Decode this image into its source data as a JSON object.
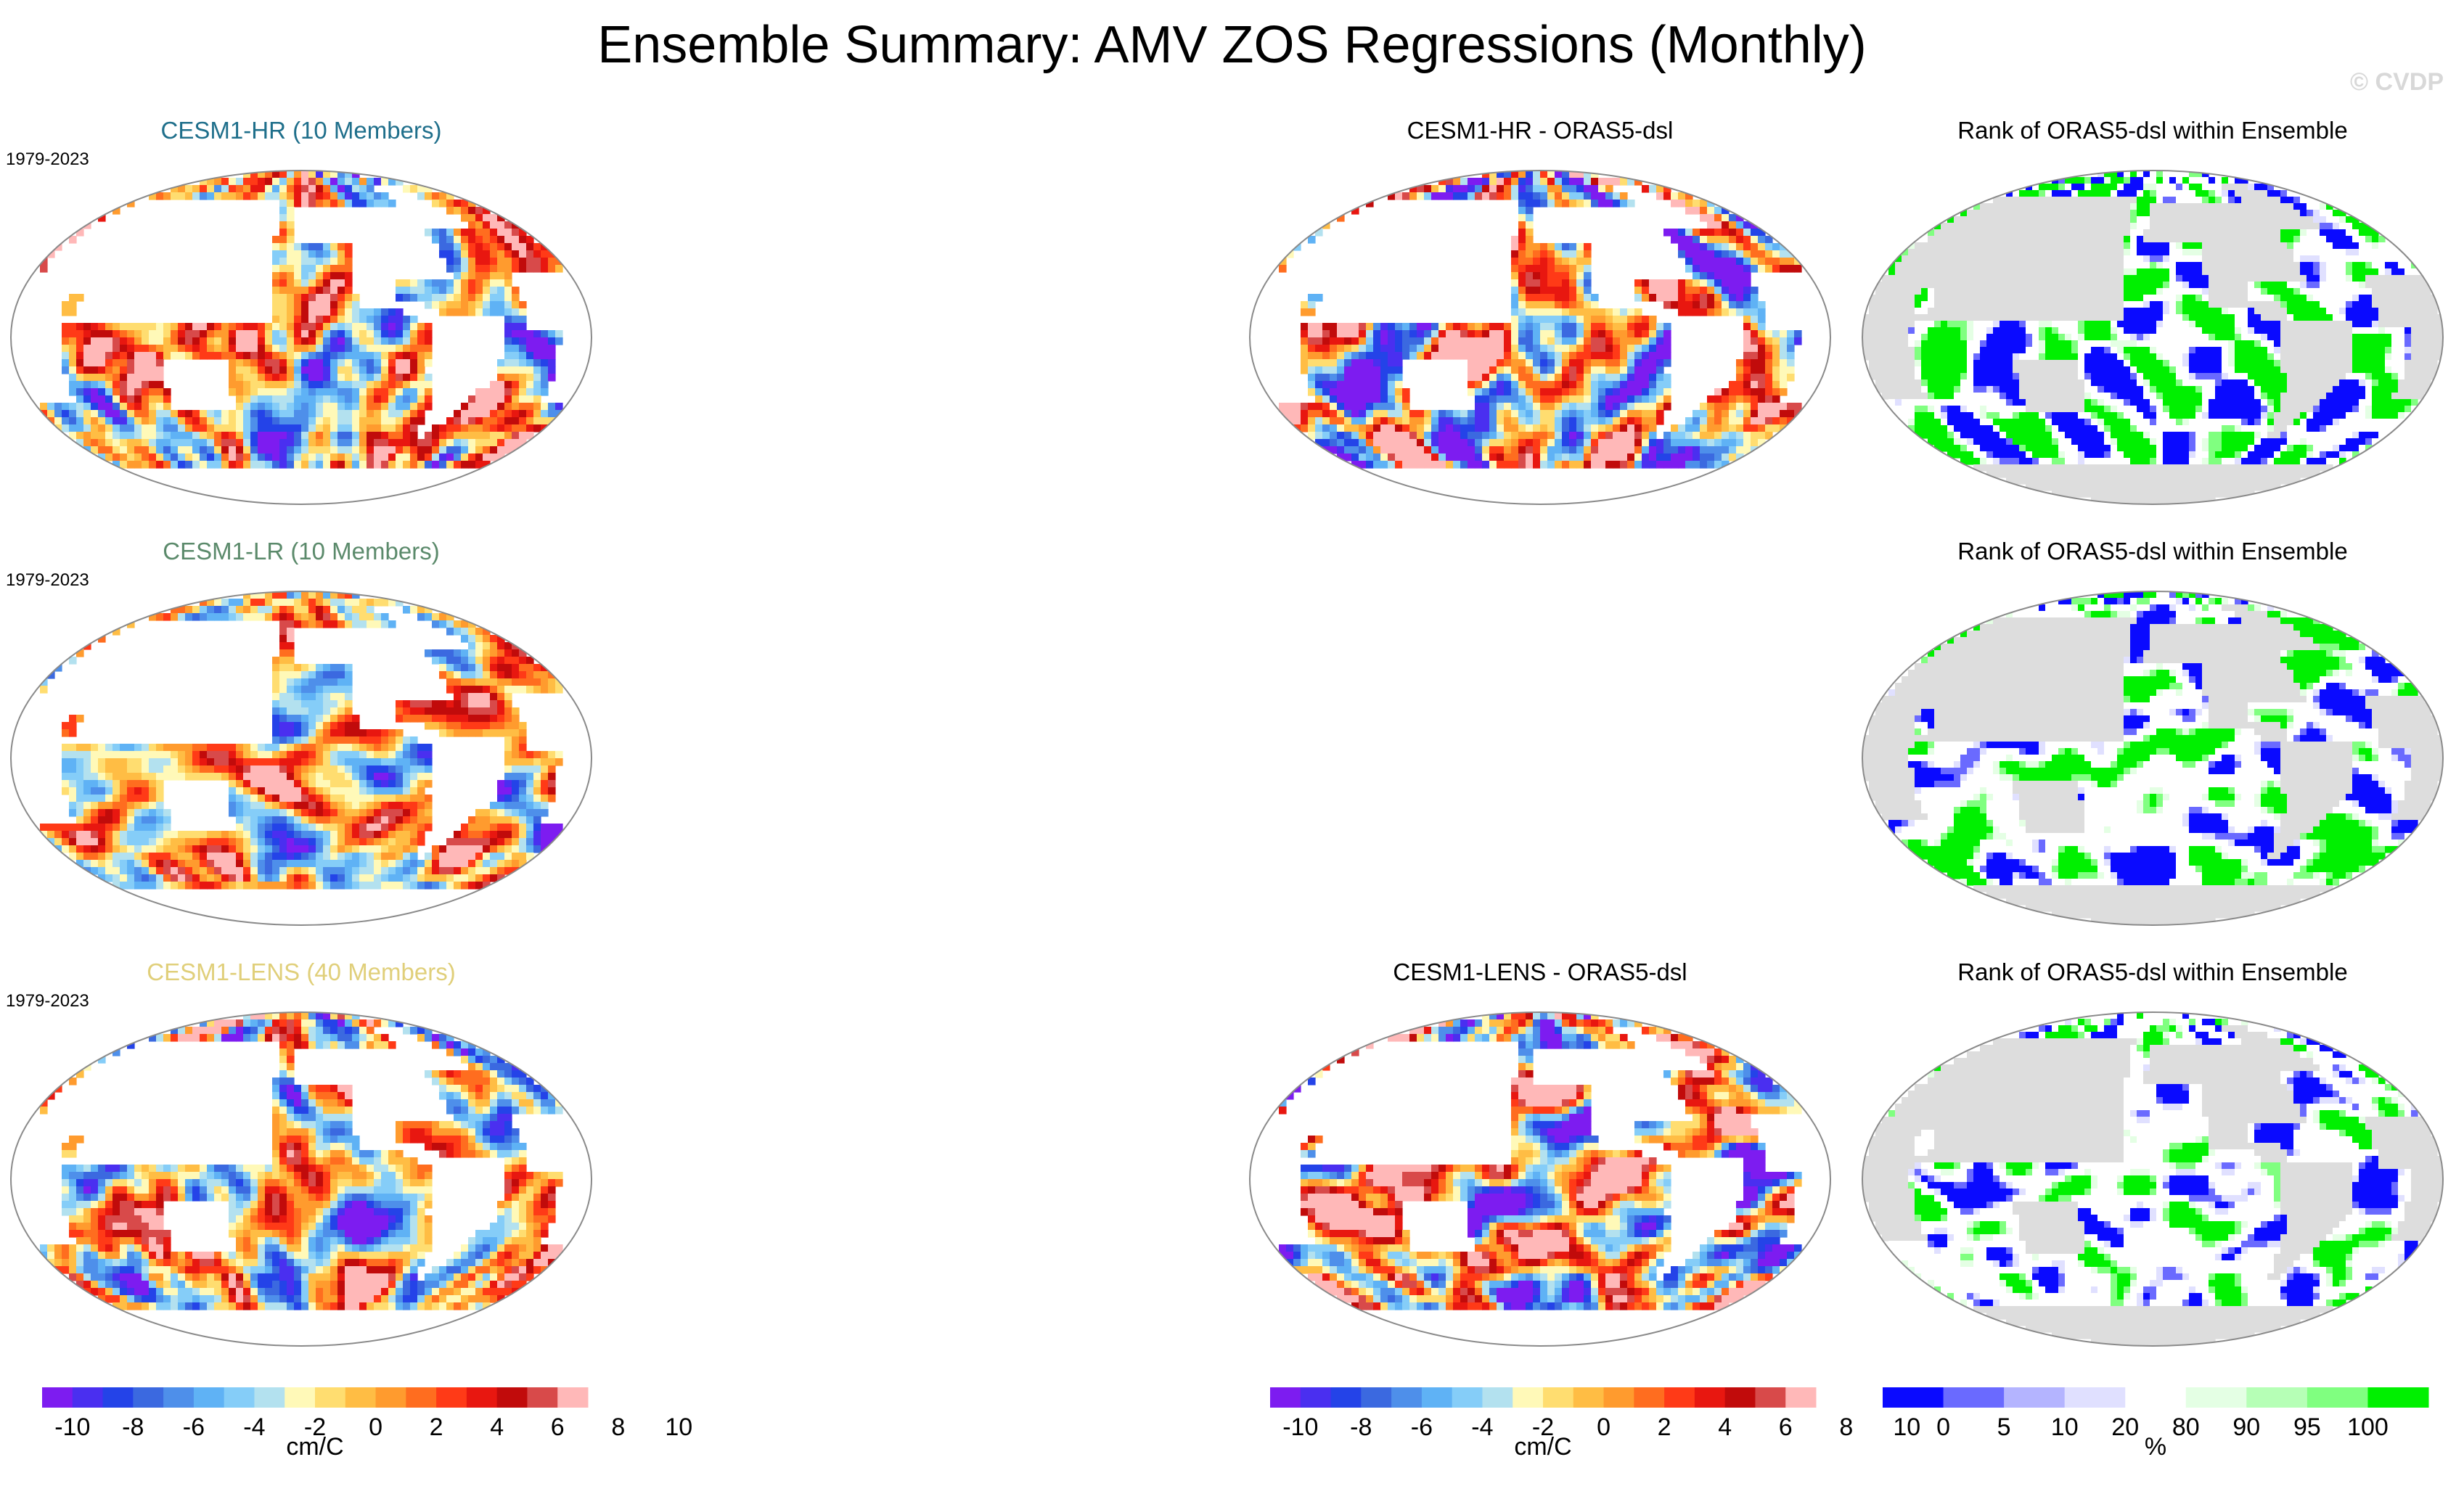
{
  "title": "Ensemble Summary: AMV ZOS Regressions (Monthly)",
  "watermark": "© CVDP",
  "colors": {
    "cont": [
      "#7d1cf0",
      "#4a2ff0",
      "#2443e8",
      "#3b69e0",
      "#4e8fea",
      "#5fb2f5",
      "#85cdf8",
      "#b3e1ef",
      "#fff9b8",
      "#ffdd70",
      "#ffbd44",
      "#ff9b2e",
      "#ff6d1f",
      "#ff3a17",
      "#e81710",
      "#c10b0b",
      "#d84a4a",
      "#ffb8b8"
    ],
    "rank": [
      "#0a0aff",
      "#6a6aff",
      "#b4b4ff",
      "#e0e0ff",
      "#ffffff",
      "#e4ffe4",
      "#b6ffb6",
      "#80ff80",
      "#00f000"
    ],
    "land": "#dddddd"
  },
  "panels": [
    {
      "id": "hr-mean",
      "title": "CESM1-HR (10 Members)",
      "title_color": "#1f6f8b",
      "period": "1979-2023",
      "kind": "mean",
      "seed": 11
    },
    {
      "id": "hr-diff",
      "title": "CESM1-HR - ORAS5-dsl",
      "title_color": "#000000",
      "period": "",
      "kind": "diff",
      "seed": 23
    },
    {
      "id": "hr-rank",
      "title": "Rank of ORAS5-dsl within Ensemble",
      "title_color": "#000000",
      "period": "",
      "kind": "rank",
      "seed": 37
    },
    {
      "id": "lr-mean",
      "title": "CESM1-LR (10 Members)",
      "title_color": "#5b8a6b",
      "period": "1979-2023",
      "kind": "mean",
      "seed": 41
    },
    {
      "id": "lr-rank",
      "title": "Rank of ORAS5-dsl within Ensemble",
      "title_color": "#000000",
      "period": "",
      "kind": "rank",
      "seed": 53
    },
    {
      "id": "lens-mean",
      "title": "CESM1-LENS (40 Members)",
      "title_color": "#e0cf7a",
      "period": "1979-2023",
      "kind": "mean",
      "seed": 67
    },
    {
      "id": "lens-diff",
      "title": "CESM1-LENS - ORAS5-dsl",
      "title_color": "#000000",
      "period": "",
      "kind": "diff",
      "seed": 71
    },
    {
      "id": "lens-rank",
      "title": "Rank of ORAS5-dsl within Ensemble",
      "title_color": "#000000",
      "period": "",
      "kind": "rank",
      "seed": 89
    }
  ],
  "chart_data": {
    "type": "heatmap",
    "title": "Ensemble Summary: AMV ZOS Regressions (Monthly)",
    "period": "1979-2023",
    "colorbar_regression": {
      "unit": "cm/C",
      "levels": [
        -10,
        -9,
        -8,
        -7,
        -6,
        -5,
        -4,
        -3,
        -2,
        -1,
        0,
        1,
        2,
        3,
        4,
        5,
        6,
        7,
        8,
        9,
        10
      ],
      "tick_labels": [
        "-10",
        "-8",
        "-6",
        "-4",
        "-2",
        "0",
        "2",
        "4",
        "6",
        "8",
        "10"
      ]
    },
    "colorbar_rank": {
      "unit": "%",
      "bounds": [
        0,
        5,
        10,
        20,
        80,
        90,
        95,
        100
      ],
      "tick_labels": [
        "0",
        "5",
        "10",
        "20",
        "80",
        "90",
        "95",
        "100"
      ]
    }
  }
}
